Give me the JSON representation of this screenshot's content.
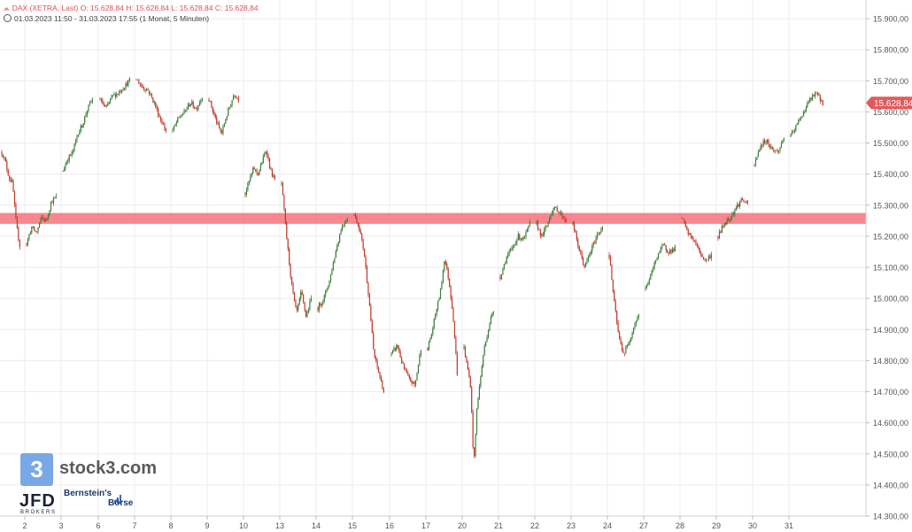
{
  "header": {
    "line1": "DAX (XETRA, Last)  O: 15.628,84  H: 15.628,84  L: 15.628,84  C: 15.628,84",
    "line2": "01.03.2023 11:50 - 31.03.2023 17:55   (1 Monat, 5 Minuten)"
  },
  "branding": {
    "stock3_glyph": "3",
    "stock3_text": "stock3.com",
    "jfd_text": "JFD",
    "jfd_sub": "BROKERS",
    "bernstein_line1": "Bernstein's",
    "bernstein_line2": "Börse"
  },
  "colors": {
    "up": "#3e7d3a",
    "down": "#c0392b",
    "resistance_zone": "#f7727c",
    "price_tag": "#e35a5a",
    "grid": "#ececec"
  },
  "chart_data": {
    "type": "candlestick",
    "title": "DAX (XETRA, Last)",
    "period": "01.03.2023 11:50 - 31.03.2023 17:55",
    "interval": "5 Minuten",
    "ylim": [
      14300,
      15960
    ],
    "y_ticks": [
      "15.900,00",
      "15.800,00",
      "15.700,00",
      "15.600,00",
      "15.500,00",
      "15.400,00",
      "15.300,00",
      "15.200,00",
      "15.100,00",
      "15.000,00",
      "14.900,00",
      "14.800,00",
      "14.700,00",
      "14.600,00",
      "14.500,00",
      "14.400,00",
      "14.300,00"
    ],
    "y_tick_values": [
      15900,
      15800,
      15700,
      15600,
      15500,
      15400,
      15300,
      15200,
      15100,
      15000,
      14900,
      14800,
      14700,
      14600,
      14500,
      14400,
      14300
    ],
    "x_ticks": [
      "2",
      "3",
      "6",
      "7",
      "8",
      "9",
      "10",
      "13",
      "14",
      "15",
      "16",
      "17",
      "20",
      "21",
      "22",
      "23",
      "24",
      "27",
      "28",
      "29",
      "30",
      "31"
    ],
    "last_price": 15628.84,
    "last_price_label": "15.628,84",
    "resistance_zone": [
      15240,
      15275
    ],
    "grid": true,
    "sessions": [
      {
        "day": "1",
        "path": [
          15470,
          15440,
          15390,
          15370,
          15240,
          15170
        ]
      },
      {
        "day": "2",
        "path": [
          15175,
          15230,
          15210,
          15260,
          15250,
          15310,
          15325
        ]
      },
      {
        "day": "3",
        "path": [
          15410,
          15450,
          15470,
          15530,
          15560,
          15610,
          15640
        ]
      },
      {
        "day": "6",
        "path": [
          15640,
          15610,
          15650,
          15660,
          15680,
          15700
        ]
      },
      {
        "day": "7",
        "path": [
          15705,
          15680,
          15670,
          15630,
          15580,
          15540
        ]
      },
      {
        "day": "8",
        "path": [
          15540,
          15580,
          15600,
          15630,
          15610,
          15650
        ]
      },
      {
        "day": "9",
        "path": [
          15640,
          15600,
          15560,
          15530,
          15580,
          15620,
          15660,
          15640
        ]
      },
      {
        "day": "10",
        "path": [
          15340,
          15380,
          15420,
          15400,
          15440,
          15480,
          15410,
          15380
        ]
      },
      {
        "day": "13",
        "path": [
          15370,
          15200,
          15050,
          14950,
          15020,
          14940,
          15000
        ]
      },
      {
        "day": "14",
        "path": [
          14970,
          15000,
          15060,
          15150,
          15230,
          15260
        ]
      },
      {
        "day": "15",
        "path": [
          15270,
          15230,
          15150,
          15000,
          14820,
          14760,
          14700
        ]
      },
      {
        "day": "16",
        "path": [
          14820,
          14850,
          14780,
          14740,
          14720,
          14840
        ]
      },
      {
        "day": "17",
        "path": [
          14840,
          14890,
          14960,
          15020,
          15130,
          15060,
          14950,
          14760
        ]
      },
      {
        "day": "20",
        "path": [
          14840,
          14780,
          14720,
          14460,
          14660,
          14740,
          14830,
          14880,
          14930,
          14960
        ]
      },
      {
        "day": "21",
        "path": [
          15070,
          15130,
          15160,
          15200,
          15190,
          15240
        ]
      },
      {
        "day": "22",
        "path": [
          15240,
          15200,
          15230,
          15280,
          15290,
          15270,
          15250
        ]
      },
      {
        "day": "23",
        "path": [
          15240,
          15160,
          15100,
          15150,
          15200,
          15230
        ]
      },
      {
        "day": "24",
        "path": [
          15140,
          14990,
          14870,
          14820,
          14860,
          14910,
          14950
        ]
      },
      {
        "day": "27",
        "path": [
          15030,
          15080,
          15140,
          15170,
          15150,
          15160
        ]
      },
      {
        "day": "28",
        "path": [
          15260,
          15210,
          15190,
          15150,
          15120,
          15140
        ]
      },
      {
        "day": "29",
        "path": [
          15200,
          15240,
          15260,
          15290,
          15320,
          15300
        ]
      },
      {
        "day": "30",
        "path": [
          15430,
          15490,
          15510,
          15480,
          15470,
          15520
        ]
      },
      {
        "day": "31",
        "path": [
          15520,
          15560,
          15600,
          15640,
          15660,
          15629
        ]
      }
    ]
  }
}
